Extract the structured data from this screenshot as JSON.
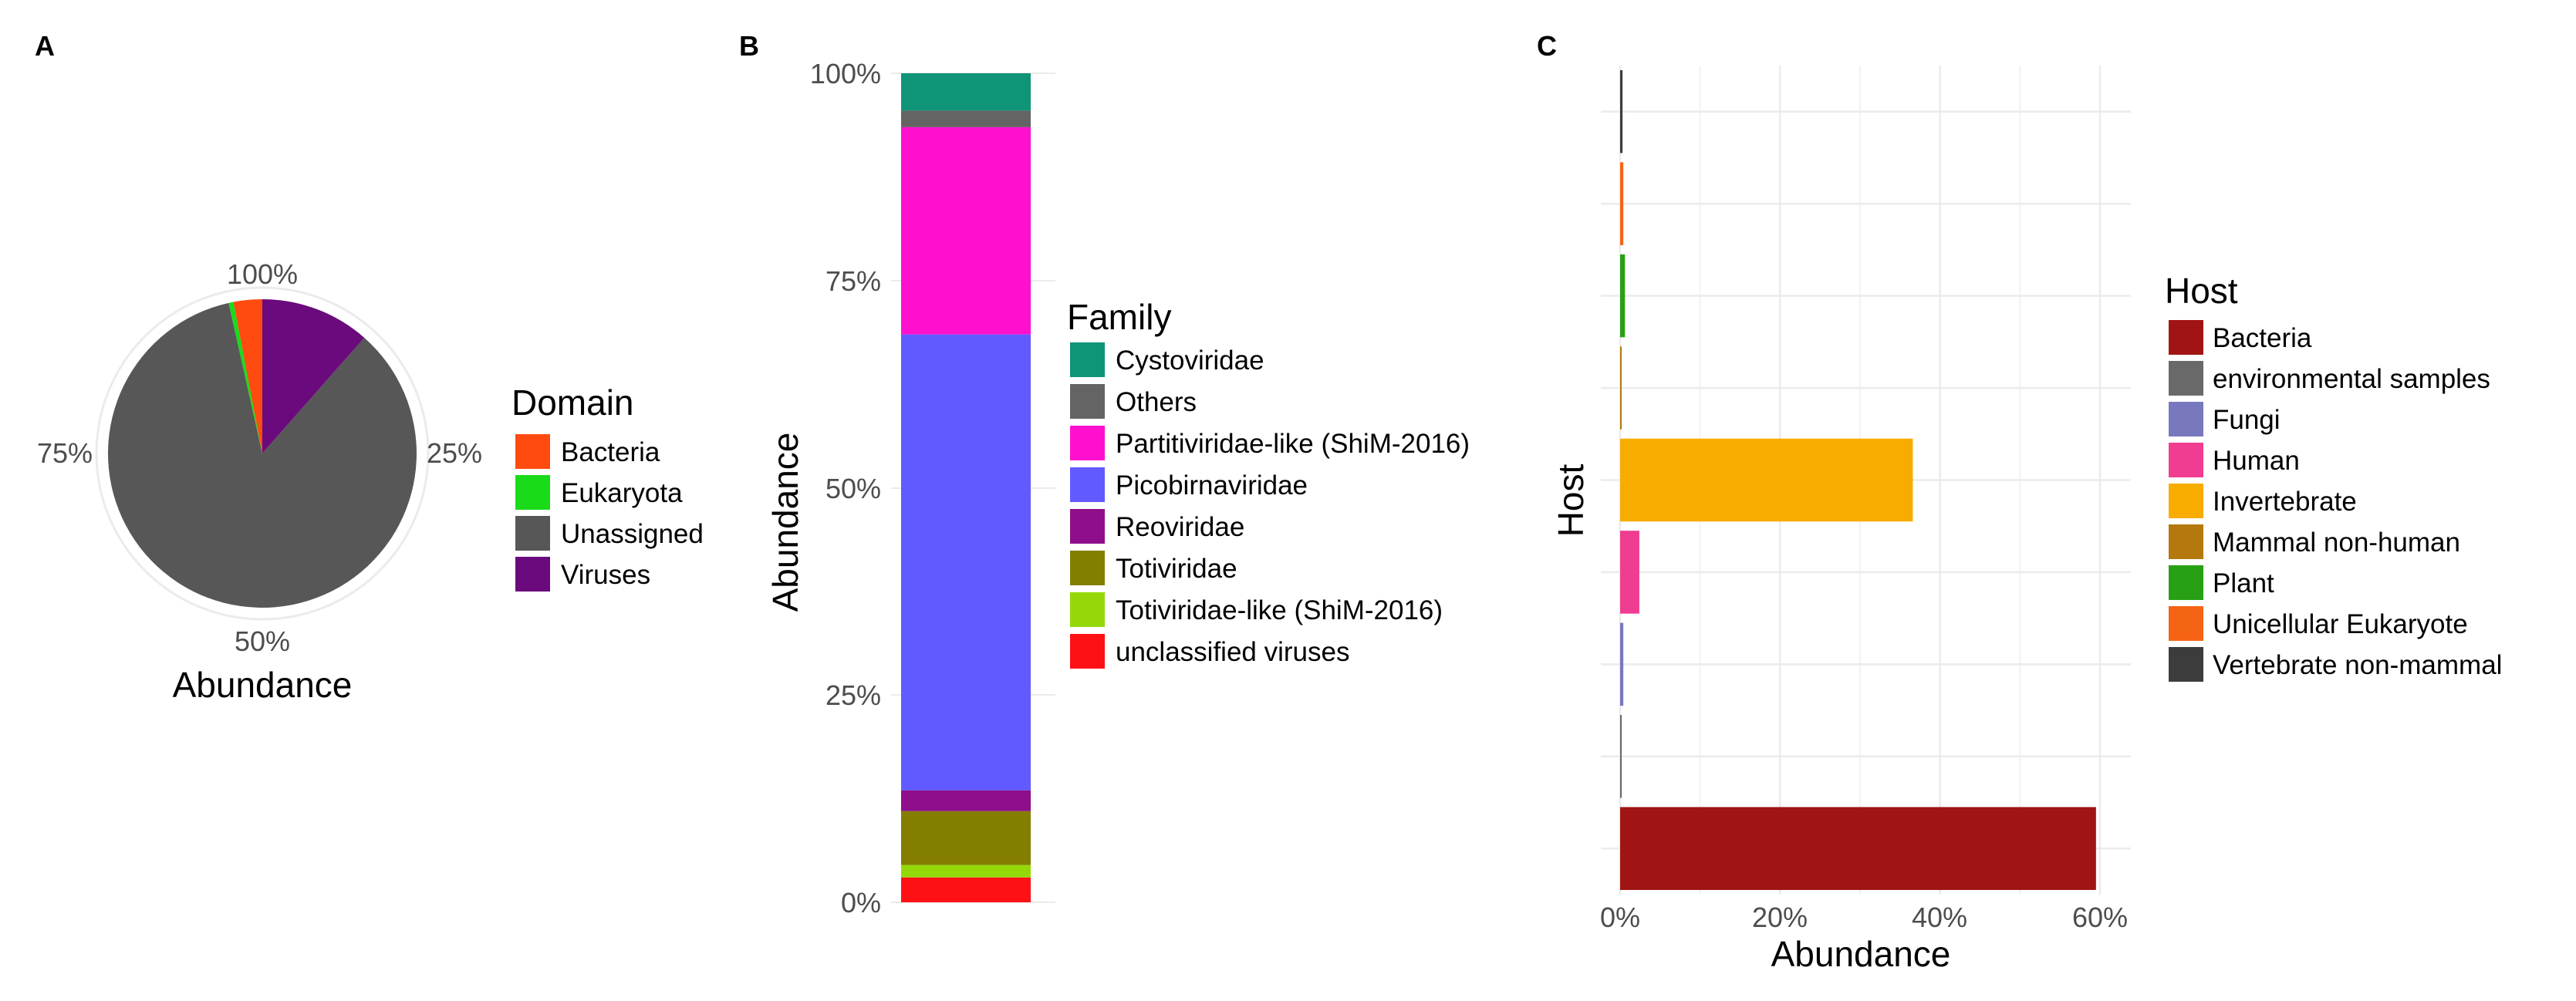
{
  "chart_data": [
    {
      "panel": "A",
      "type": "pie",
      "xlabel": "Abundance",
      "theta_ticks": [
        "100%",
        "25%",
        "50%",
        "75%"
      ],
      "legend_title": "Domain",
      "categories": [
        "Bacteria",
        "Eukaryota",
        "Unassigned",
        "Viruses"
      ],
      "values": [
        0.03,
        0.005,
        0.85,
        0.115
      ],
      "slice_order": [
        "Viruses",
        "Unassigned",
        "Eukaryota",
        "Bacteria"
      ],
      "colors": [
        "#FF4B0F",
        "#1ADB1A",
        "#575757",
        "#6B0A7D"
      ]
    },
    {
      "panel": "B",
      "type": "bar",
      "stacked": true,
      "ylabel": "Abundance",
      "yticks": [
        "0%",
        "25%",
        "50%",
        "75%",
        "100%"
      ],
      "ylim": [
        0,
        1
      ],
      "legend_title": "Family",
      "categories": [
        "Cystoviridae",
        "Others",
        "Partitiviridae-like (ShiM-2016)",
        "Picobirnaviridae",
        "Reoviridae",
        "Totiviridae",
        "Totiviridae-like (ShiM-2016)",
        "unclassified viruses"
      ],
      "values": [
        0.045,
        0.02,
        0.25,
        0.55,
        0.025,
        0.065,
        0.015,
        0.03
      ],
      "colors": [
        "#0F9478",
        "#646464",
        "#FF10CE",
        "#615AFF",
        "#8E0E8B",
        "#847E00",
        "#95D80A",
        "#FF1014"
      ]
    },
    {
      "panel": "C",
      "type": "bar",
      "orientation": "horizontal",
      "xlabel": "Abundance",
      "ylabel": "Host",
      "xticks": [
        "0%",
        "20%",
        "40%",
        "60%"
      ],
      "xlim": [
        0,
        0.62
      ],
      "legend_title": "Host",
      "categories": [
        "Bacteria",
        "environmental samples",
        "Fungi",
        "Human",
        "Invertebrate",
        "Mammal non-human",
        "Plant",
        "Unicellular Eukaryote",
        "Vertebrate non-mammal"
      ],
      "values": [
        0.595,
        0.002,
        0.004,
        0.024,
        0.366,
        0.001,
        0.006,
        0.004,
        0.003
      ],
      "colors": [
        "#A01414",
        "#696969",
        "#7878BE",
        "#F03C91",
        "#F8AC00",
        "#B4780F",
        "#28A014",
        "#F56414",
        "#3C3C3C"
      ]
    }
  ]
}
